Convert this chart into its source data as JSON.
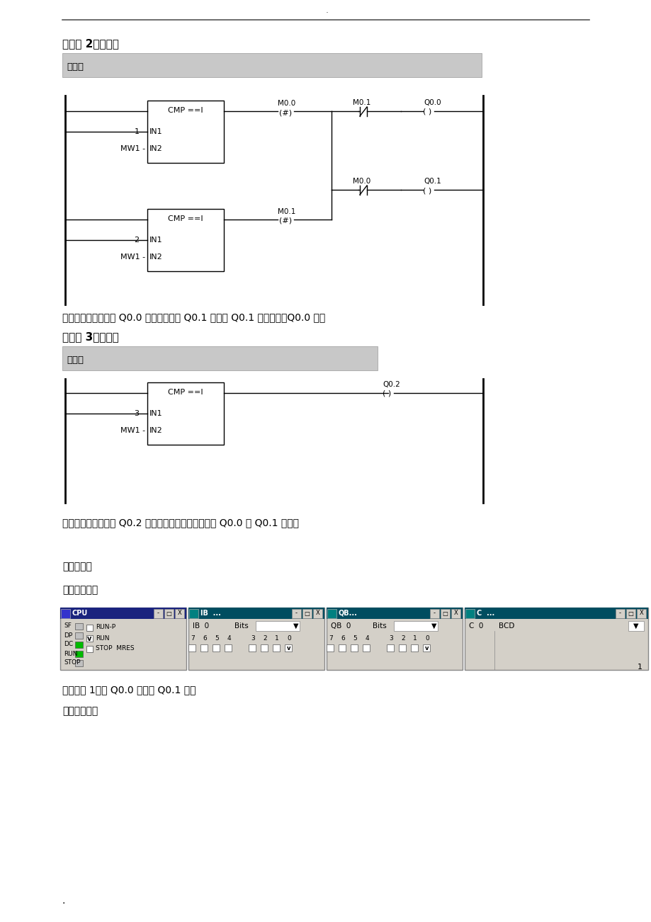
{
  "bg_color": "#ffffff",
  "comment_bg": "#c8c8c8",
  "section2_title": "程序段 2：标题：",
  "section2_comment": "注释：",
  "section3_title": "程序段 3：标题：",
  "section3_comment": "注释：",
  "text1": "利用互锁电路来实现 Q0.0 亮的时候，灯 Q0.1 灭；灯 Q0.1 亮的时候，Q0.0 灭；",
  "text2": "第三次按下时，利用 Q0.2 来清零计数器，同时也使得 Q0.0 与 Q0.1 都灭；",
  "text3": "实验仿真：",
  "text4": "第一次按下：",
  "text5": "计数器为 1，灯 Q0.0 亮；灯 Q0.1 灭；",
  "text6": "第二次按下：",
  "bottom_dot": ".",
  "top_dot": ".",
  "lc": "#000000",
  "title_bar_cpu": "#1a237e",
  "title_bar_other": "#004d60",
  "win_bg": "#d4d0c8",
  "led_green": "#00bb00",
  "led_off": "#c0c0c0"
}
